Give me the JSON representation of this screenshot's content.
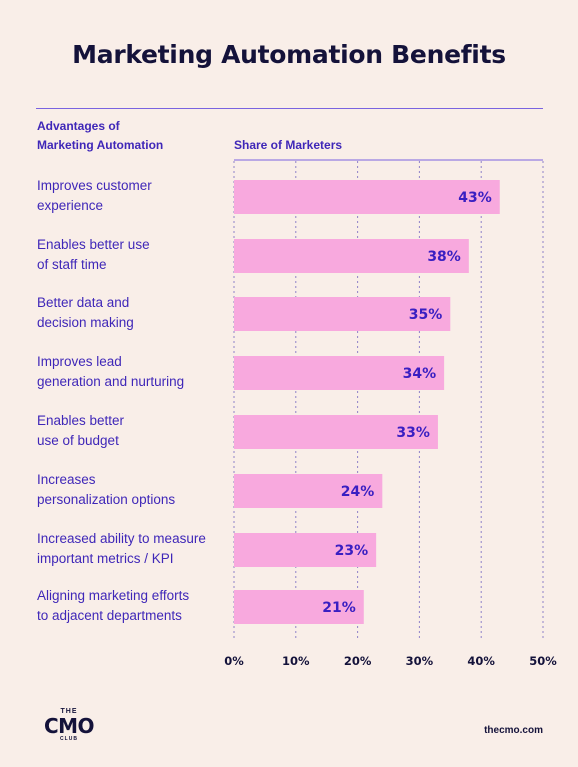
{
  "chart_data": {
    "type": "bar",
    "orientation": "horizontal",
    "title": "Marketing Automation Benefits",
    "category_header": "Advantages of\nMarketing Automation",
    "value_header": "Share of Marketers",
    "categories": [
      "Improves customer\nexperience",
      "Enables better use\nof staff time",
      "Better data and\ndecision making",
      "Improves lead\ngeneration and nurturing",
      "Enables better\nuse of budget",
      "Increases\npersonalization options",
      "Increased ability to measure\nimportant metrics / KPI",
      "Aligning marketing efforts\nto adjacent departments"
    ],
    "values": [
      43,
      38,
      35,
      34,
      33,
      24,
      23,
      21
    ],
    "data_labels": [
      "43%",
      "38%",
      "35%",
      "34%",
      "33%",
      "24%",
      "23%",
      "21%"
    ],
    "xlim": [
      0,
      50
    ],
    "xticks": [
      "0%",
      "10%",
      "20%",
      "30%",
      "40%",
      "50%"
    ],
    "grid": true,
    "bar_color": "#f8a9de",
    "label_color": "#3a1fc2",
    "text_color": "#3f27b8"
  },
  "footer": {
    "logo_top": "THE",
    "logo_main": "CMO",
    "logo_bottom": "CLUB",
    "site": "thecmo.com"
  }
}
